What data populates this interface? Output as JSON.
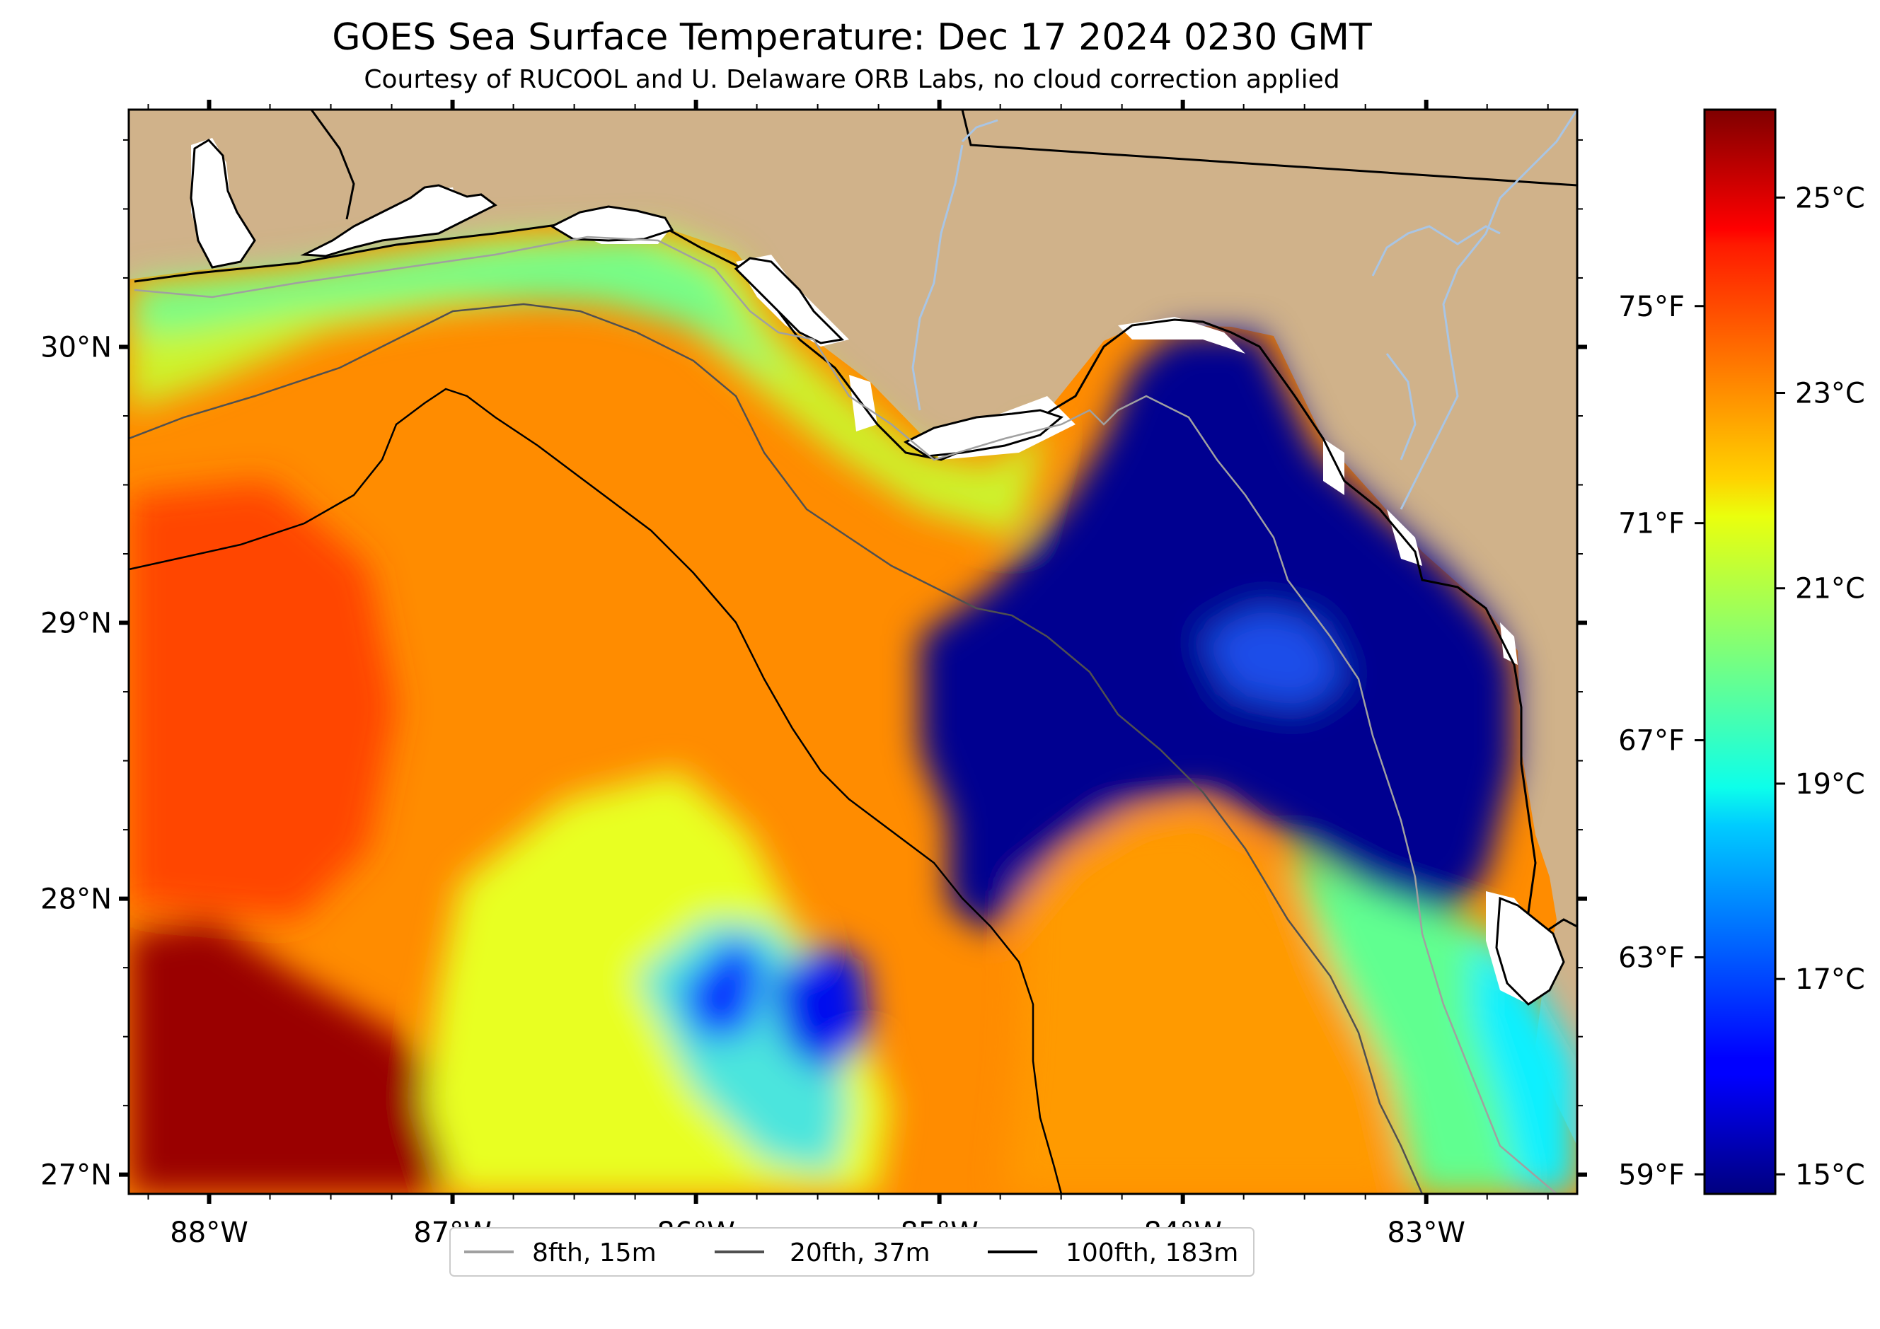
{
  "title": "GOES Sea Surface Temperature: Dec 17 2024 0230 GMT",
  "subtitle": "Courtesy of RUCOOL and U. Delaware ORB Labs, no cloud correction applied",
  "map": {
    "lon_range": [
      -88.33,
      -82.38
    ],
    "lat_range": [
      26.93,
      30.86
    ],
    "x_ticks": [
      {
        "lon": -88,
        "label": "88°W"
      },
      {
        "lon": -87,
        "label": "87°W"
      },
      {
        "lon": -86,
        "label": "86°W"
      },
      {
        "lon": -85,
        "label": "85°W"
      },
      {
        "lon": -84,
        "label": "84°W"
      },
      {
        "lon": -83,
        "label": "83°W"
      }
    ],
    "y_ticks": [
      {
        "lat": 30,
        "label": "30°N"
      },
      {
        "lat": 29,
        "label": "29°N"
      },
      {
        "lat": 28,
        "label": "28°N"
      },
      {
        "lat": 27,
        "label": "27°N"
      }
    ],
    "colors": {
      "land": "#d0b28a",
      "no_data": "#ffffff",
      "river": "#a9c5e4",
      "coast": "#000000"
    }
  },
  "colorbar": {
    "celsius_range": [
      14.8,
      25.9
    ],
    "celsius_ticks": [
      {
        "value": 25,
        "label": "25°C"
      },
      {
        "value": 23,
        "label": "23°C"
      },
      {
        "value": 21,
        "label": "21°C"
      },
      {
        "value": 19,
        "label": "19°C"
      },
      {
        "value": 17,
        "label": "17°C"
      },
      {
        "value": 15,
        "label": "15°C"
      }
    ],
    "fahrenheit_ticks": [
      {
        "value": 75,
        "label": "75°F"
      },
      {
        "value": 71,
        "label": "71°F"
      },
      {
        "value": 67,
        "label": "67°F"
      },
      {
        "value": 63,
        "label": "63°F"
      },
      {
        "value": 59,
        "label": "59°F"
      }
    ],
    "colormap": "jet"
  },
  "legend": {
    "placement": "bottom-center",
    "items": [
      {
        "label": "8fth, 15m",
        "color": "#a0a0a0"
      },
      {
        "label": "20fth, 37m",
        "color": "#505050"
      },
      {
        "label": "100fth, 183m",
        "color": "#000000"
      }
    ]
  }
}
